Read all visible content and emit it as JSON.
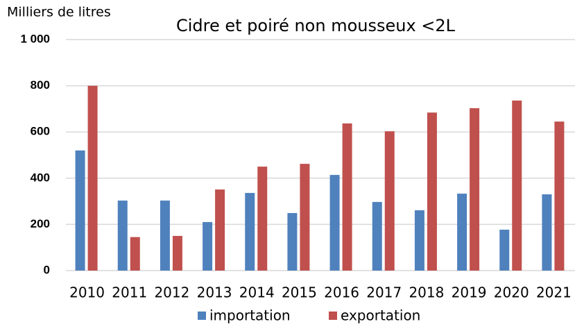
{
  "chart_data": {
    "type": "bar",
    "title": "Cidre et poiré non mousseux <2L",
    "y_label": "Milliers de litres",
    "categories": [
      "2010",
      "2011",
      "2012",
      "2013",
      "2014",
      "2015",
      "2016",
      "2017",
      "2018",
      "2019",
      "2020",
      "2021"
    ],
    "series": [
      {
        "name": "importation",
        "color": "#4f81bd",
        "values": [
          520,
          303,
          303,
          210,
          336,
          249,
          414,
          297,
          261,
          333,
          177,
          330
        ]
      },
      {
        "name": "exportation",
        "color": "#c0504d",
        "values": [
          800,
          145,
          150,
          351,
          450,
          462,
          637,
          603,
          684,
          703,
          736,
          645
        ]
      }
    ],
    "ylim": [
      0,
      1000
    ],
    "yticks": [
      0,
      200,
      400,
      600,
      800,
      {
        "value": 1000,
        "label": "1 000"
      }
    ],
    "grid": true,
    "legend": "bottom"
  }
}
